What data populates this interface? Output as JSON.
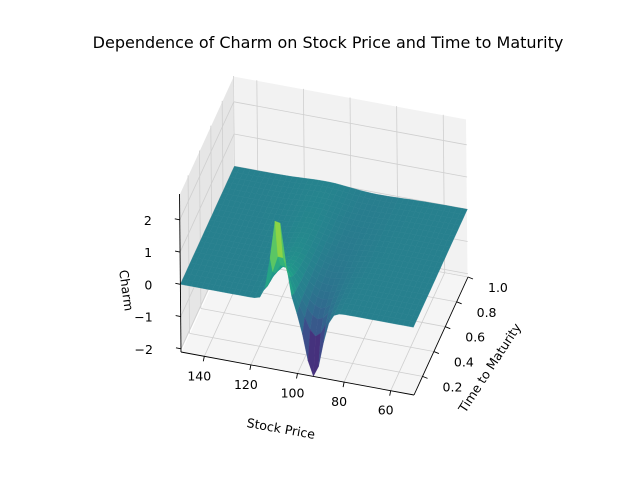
{
  "chart_data": {
    "type": "surface",
    "title": "Dependence of Charm on Stock Price and Time to Maturity",
    "xlabel": "Stock Price",
    "ylabel": "Time to Maturity",
    "zlabel": "Charm",
    "xlim": [
      50,
      150
    ],
    "ylim": [
      0.05,
      1.0
    ],
    "zlim": [
      -2.1,
      2.8
    ],
    "xticks": [
      60,
      80,
      100,
      120,
      140
    ],
    "yticks": [
      0.2,
      0.4,
      0.6,
      0.8,
      1.0
    ],
    "zticks": [
      -2,
      -1,
      0,
      1,
      2
    ],
    "xtick_labels": [
      "60",
      "80",
      "100",
      "120",
      "140"
    ],
    "ytick_labels": [
      "0.2",
      "0.4",
      "0.6",
      "0.8",
      "1.0"
    ],
    "ztick_labels": [
      "−2",
      "−1",
      "0",
      "1",
      "2"
    ],
    "colormap": "viridis",
    "grid": true,
    "surface_summary": {
      "baseline_charm": 0.0,
      "peak": {
        "stock_price": 108,
        "time_to_maturity": 0.05,
        "charm": 2.7
      },
      "trough": {
        "stock_price": 93,
        "time_to_maturity": 0.05,
        "charm": -2.1
      }
    }
  }
}
